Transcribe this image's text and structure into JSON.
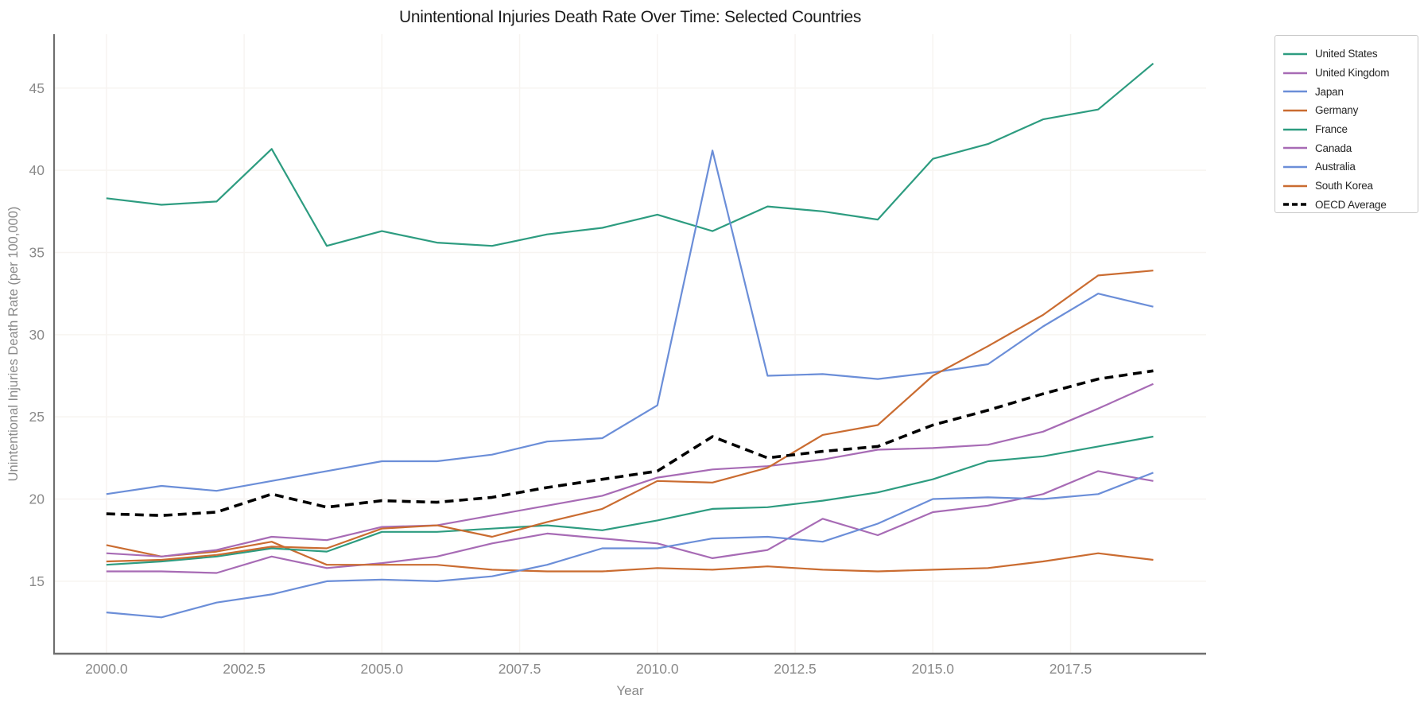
{
  "page": {
    "title": "Unintentional Injuries Death Rate Over Time: Selected Countries"
  },
  "chart_data": {
    "type": "line",
    "title": "Unintentional Injuries Death Rate Over Time: Selected Countries",
    "xlabel": "Year",
    "ylabel": "Unintentional Injuries Death Rate (per 100,000)",
    "grid": true,
    "grid_color": "#f7f4f1",
    "spine_color": "#6f6f6f",
    "tick_color": "#8a8a8a",
    "legend_position": "outside upper right",
    "x": [
      2000,
      2001,
      2002,
      2003,
      2004,
      2005,
      2006,
      2007,
      2008,
      2009,
      2010,
      2011,
      2012,
      2013,
      2014,
      2015,
      2016,
      2017,
      2018,
      2019
    ],
    "xlim": [
      1999.05,
      2019.96
    ],
    "ylim": [
      10.59,
      48.28
    ],
    "xticks": {
      "values": [
        2000,
        2002.5,
        2005,
        2007.5,
        2010,
        2012.5,
        2015,
        2017.5
      ],
      "labels": [
        "2000.0",
        "2002.5",
        "2005.0",
        "2007.5",
        "2010.0",
        "2012.5",
        "2015.0",
        "2017.5"
      ]
    },
    "yticks": {
      "values": [
        15,
        20,
        25,
        30,
        35,
        40,
        45
      ],
      "labels": [
        "15",
        "20",
        "25",
        "30",
        "35",
        "40",
        "45"
      ]
    },
    "series": [
      {
        "name": "United States",
        "color": "#2d9c80",
        "dash": null,
        "values": [
          38.3,
          37.9,
          38.1,
          41.3,
          35.4,
          36.3,
          35.6,
          35.4,
          36.1,
          36.5,
          37.3,
          36.3,
          37.8,
          37.5,
          37.0,
          40.7,
          41.6,
          43.1,
          43.7,
          46.5
        ]
      },
      {
        "name": "United Kingdom",
        "color": "#a76bb5",
        "dash": null,
        "values": [
          15.6,
          15.6,
          15.5,
          16.5,
          15.8,
          16.1,
          16.5,
          17.3,
          17.9,
          17.6,
          17.3,
          16.4,
          16.9,
          18.8,
          17.8,
          19.2,
          19.6,
          20.3,
          21.7,
          21.1
        ]
      },
      {
        "name": "Japan",
        "color": "#6b8ed8",
        "dash": null,
        "values": [
          20.3,
          20.8,
          20.5,
          21.1,
          21.7,
          22.3,
          22.3,
          22.7,
          23.5,
          23.7,
          25.7,
          41.2,
          27.5,
          27.6,
          27.3,
          27.7,
          28.2,
          30.5,
          32.5,
          31.7
        ]
      },
      {
        "name": "Germany",
        "color": "#ca6c31",
        "dash": null,
        "values": [
          17.2,
          16.5,
          16.8,
          17.4,
          16.0,
          16.0,
          16.0,
          15.7,
          15.6,
          15.6,
          15.8,
          15.7,
          15.9,
          15.7,
          15.6,
          15.7,
          15.8,
          16.2,
          16.7,
          16.3
        ]
      },
      {
        "name": "France",
        "color": "#2d9c80",
        "dash": null,
        "values": [
          16.0,
          16.2,
          16.5,
          17.0,
          16.8,
          18.0,
          18.0,
          18.2,
          18.4,
          18.1,
          18.7,
          19.4,
          19.5,
          19.9,
          20.4,
          21.2,
          22.3,
          22.6,
          23.2,
          23.8
        ]
      },
      {
        "name": "Canada",
        "color": "#a76bb5",
        "dash": null,
        "values": [
          16.7,
          16.5,
          16.9,
          17.7,
          17.5,
          18.3,
          18.4,
          19.0,
          19.6,
          20.2,
          21.3,
          21.8,
          22.0,
          22.4,
          23.0,
          23.1,
          23.3,
          24.1,
          25.5,
          27.0
        ]
      },
      {
        "name": "Australia",
        "color": "#6b8ed8",
        "dash": null,
        "values": [
          13.1,
          12.8,
          13.7,
          14.2,
          15.0,
          15.1,
          15.0,
          15.3,
          16.0,
          17.0,
          17.0,
          17.6,
          17.7,
          17.4,
          18.5,
          20.0,
          20.1,
          20.0,
          20.3,
          21.6
        ]
      },
      {
        "name": "South Korea",
        "color": "#ca6c31",
        "dash": null,
        "values": [
          16.2,
          16.3,
          16.6,
          17.1,
          17.0,
          18.2,
          18.4,
          17.7,
          18.6,
          19.4,
          21.1,
          21.0,
          21.9,
          23.9,
          24.5,
          27.5,
          29.3,
          31.2,
          33.6,
          33.9
        ]
      },
      {
        "name": "OECD Average",
        "color": "#000000",
        "dash": "11 7",
        "values": [
          19.1,
          19.0,
          19.2,
          20.3,
          19.5,
          19.9,
          19.8,
          20.1,
          20.7,
          21.2,
          21.7,
          23.8,
          22.5,
          22.9,
          23.2,
          24.5,
          25.4,
          26.4,
          27.3,
          27.8
        ]
      }
    ]
  }
}
